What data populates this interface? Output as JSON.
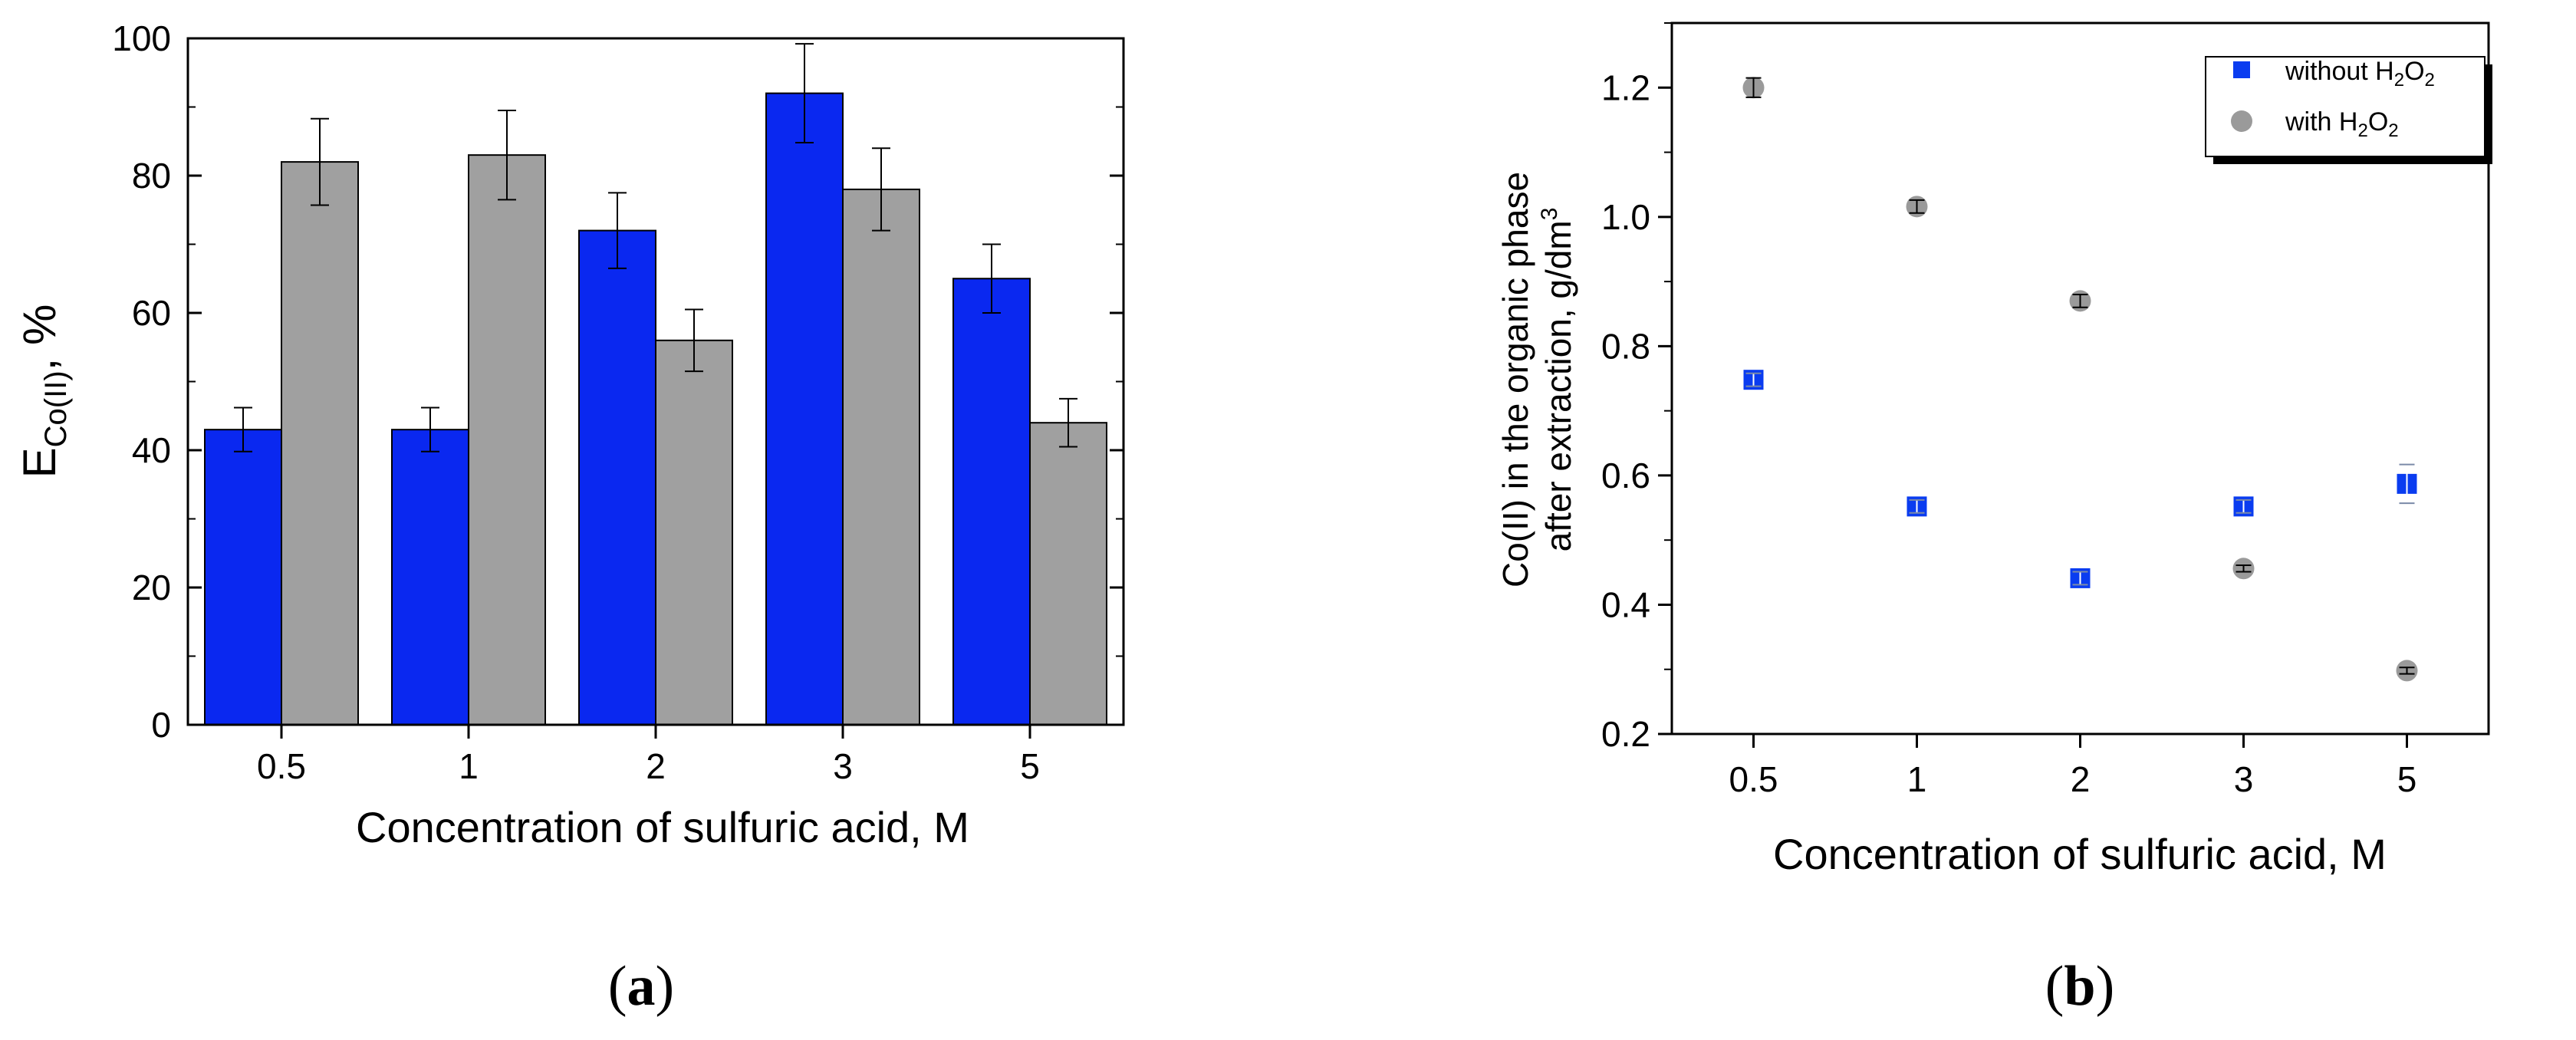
{
  "chart_data": [
    {
      "type": "bar",
      "panel_label": "a",
      "categories": [
        "0.5",
        "1",
        "2",
        "3",
        "5"
      ],
      "series": [
        {
          "name": "Co(II) without H2O2",
          "color": "#0a28f0",
          "values": [
            43,
            43,
            72,
            92,
            65
          ],
          "errors": [
            3.2,
            3.2,
            5.5,
            7.2,
            5.0
          ]
        },
        {
          "name": "Co(II) with H2O2",
          "color": "#a0a0a0",
          "values": [
            82,
            83,
            56,
            78,
            44
          ],
          "errors": [
            6.3,
            6.5,
            4.5,
            6.0,
            3.5
          ]
        }
      ],
      "xlabel": "Concentration of sulfuric acid, M",
      "ylabel": {
        "main": "E",
        "sub": "Co(II)",
        "suffix": ",  %"
      },
      "ylim": [
        0,
        100
      ],
      "yticks": [
        "0",
        "20",
        "40",
        "60",
        "80",
        "100"
      ]
    },
    {
      "type": "scatter",
      "panel_label": "b",
      "categories": [
        "0.5",
        "1",
        "2",
        "3",
        "5"
      ],
      "series": [
        {
          "name": "without H2O2",
          "legend": {
            "pre": "without H",
            "sub1": "2",
            "mid": "O",
            "sub2": "2"
          },
          "marker": "square",
          "color": "#0a3cf0",
          "values": [
            0.748,
            0.552,
            0.441,
            0.552,
            0.587
          ],
          "errors": [
            0.01,
            0.01,
            0.01,
            0.01,
            0.03
          ]
        },
        {
          "name": "with H2O2",
          "legend": {
            "pre": "with H",
            "sub1": "2",
            "mid": "O",
            "sub2": "2"
          },
          "marker": "circle",
          "color": "#9a9a9a",
          "values": [
            1.2,
            1.016,
            0.87,
            0.456,
            0.298
          ],
          "errors": [
            0.015,
            0.01,
            0.01,
            0.005,
            0.005
          ]
        }
      ],
      "xlabel": "Concentration of sulfuric acid, M",
      "ylabel": {
        "line1": "Co(II) in the organic phase",
        "line2": "after extraction, g/dm",
        "sup": "3"
      },
      "ylim": [
        0.2,
        1.3
      ],
      "yticks": [
        "0.2",
        "0.4",
        "0.6",
        "0.8",
        "1.0",
        "1.2"
      ],
      "legend_position": "top-right"
    }
  ]
}
